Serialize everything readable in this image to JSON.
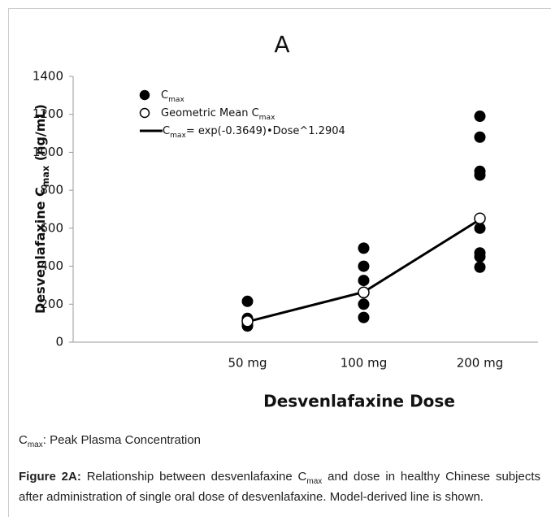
{
  "chart_data": {
    "type": "scatter",
    "title": "A",
    "categories": [
      "50 mg",
      "100 mg",
      "200 mg"
    ],
    "x_label": "Desvenlafaxine Dose",
    "y_label": [
      "Desvenlafaxine C",
      "max",
      " (ng/mL)"
    ],
    "ylim": [
      0,
      1400
    ],
    "yticks": [
      0,
      200,
      400,
      600,
      800,
      1000,
      1200,
      1400
    ],
    "series": [
      {
        "name": [
          "C",
          "max"
        ],
        "color": "#000000",
        "marker": "filled",
        "x": [
          "50 mg",
          "50 mg",
          "50 mg",
          "50 mg",
          "50 mg",
          "100 mg",
          "100 mg",
          "100 mg",
          "100 mg",
          "100 mg",
          "100 mg",
          "200 mg",
          "200 mg",
          "200 mg",
          "200 mg",
          "200 mg",
          "200 mg",
          "200 mg",
          "200 mg",
          "200 mg"
        ],
        "values": [
          215,
          125,
          110,
          90,
          85,
          495,
          400,
          325,
          260,
          200,
          130,
          1190,
          1080,
          900,
          880,
          650,
          600,
          470,
          450,
          395
        ]
      },
      {
        "name": [
          "Geometric Mean C",
          "max"
        ],
        "color": "#000000",
        "marker": "open",
        "x": [
          "50 mg",
          "100 mg",
          "200 mg"
        ],
        "values": [
          110,
          262,
          652
        ]
      },
      {
        "name": [
          "C",
          "max",
          "= exp(-0.3649)•Dose^1.2904"
        ],
        "color": "#000000",
        "marker": "line",
        "x": [
          "50 mg",
          "100 mg",
          "200 mg"
        ],
        "values": [
          108,
          264,
          646
        ]
      }
    ]
  },
  "note": [
    "C",
    "max",
    ": Peak Plasma Concentration"
  ],
  "caption": {
    "label": "Figure 2A:",
    "text": [
      " Relationship between desvenlafaxine C",
      "max",
      " and dose in healthy Chinese subjects after administration of single oral dose of desvenlafaxine. Model-derived line is shown."
    ]
  }
}
